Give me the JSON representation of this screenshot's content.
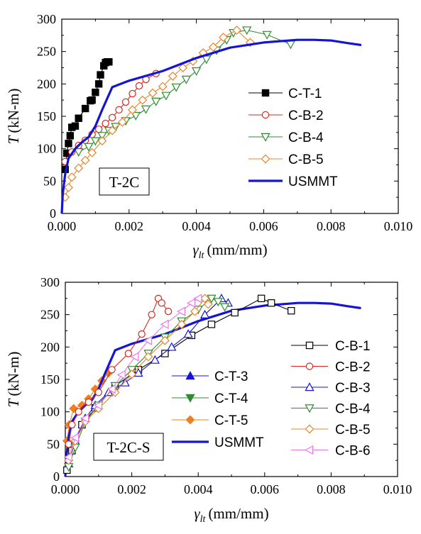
{
  "chart_data": [
    {
      "type": "line",
      "xlim": [
        0,
        0.01
      ],
      "ylim": [
        0,
        300
      ],
      "xticks": [
        "0.000",
        "0.002",
        "0.004",
        "0.006",
        "0.008",
        "0.010"
      ],
      "yticks": [
        "0",
        "50",
        "100",
        "150",
        "200",
        "250",
        "300"
      ],
      "xlabel": "γ",
      "xlabel_sub": "lt",
      "xlabel_unit": "(mm/mm)",
      "ylabel": "T",
      "ylabel_unit": "(kN-m)",
      "annotation": "T-2C",
      "legend_position": "right",
      "series": [
        {
          "name": "C-T-1",
          "marker": "square-filled",
          "color": "#000000",
          "x": [
            0.0001,
            0.00015,
            0.0002,
            0.00025,
            0.0003,
            0.0004,
            0.0005,
            0.0007,
            0.00085,
            0.0009,
            0.001,
            0.0011,
            0.00115,
            0.00125,
            0.0013,
            0.00135,
            0.0014
          ],
          "y": [
            68,
            93,
            108,
            120,
            133,
            135,
            147,
            162,
            174,
            175,
            187,
            200,
            214,
            228,
            233,
            234,
            234
          ]
        },
        {
          "name": "C-B-2",
          "marker": "circle-open",
          "color": "#d9281e",
          "x": [
            0.0001,
            0.0003,
            0.0005,
            0.0007,
            0.0009,
            0.0011,
            0.0013,
            0.0015,
            0.0017,
            0.0019,
            0.0021,
            0.0023,
            0.0025,
            0.0028
          ],
          "y": [
            80,
            95,
            105,
            113,
            122,
            130,
            139,
            148,
            160,
            172,
            185,
            197,
            207,
            216
          ]
        },
        {
          "name": "C-B-4",
          "marker": "triangle-down-open",
          "color": "#2e8b2e",
          "x": [
            0.0005,
            0.0008,
            0.001,
            0.0012,
            0.0014,
            0.0016,
            0.0019,
            0.0022,
            0.0025,
            0.0028,
            0.0031,
            0.0034,
            0.0037,
            0.004,
            0.0043,
            0.0046,
            0.0049,
            0.0051,
            0.0055,
            0.0061,
            0.0068
          ],
          "y": [
            95,
            103,
            112,
            120,
            128,
            134,
            143,
            151,
            161,
            173,
            182,
            195,
            207,
            220,
            238,
            252,
            268,
            279,
            283,
            276,
            261
          ]
        },
        {
          "name": "C-B-5",
          "marker": "diamond-open",
          "color": "#e8852a",
          "x": [
            0.0001,
            0.0002,
            0.0003,
            0.0005,
            0.0007,
            0.0009,
            0.0012,
            0.0015,
            0.0018,
            0.0021,
            0.0024,
            0.0027,
            0.003,
            0.0033,
            0.0036,
            0.0039,
            0.0042,
            0.0045,
            0.0048,
            0.0052,
            0.0056
          ],
          "y": [
            25,
            40,
            56,
            70,
            82,
            94,
            112,
            128,
            141,
            160,
            175,
            186,
            196,
            212,
            225,
            235,
            248,
            257,
            272,
            283,
            264
          ]
        },
        {
          "name": "USMMT",
          "marker": "none",
          "color": "#1414d2",
          "x": [
            0,
            3e-05,
            0.0001,
            0.0002,
            0.0004,
            0.0006,
            0.0008,
            0.001,
            0.0012,
            0.0015,
            0.002,
            0.003,
            0.004,
            0.005,
            0.006,
            0.007,
            0.0075,
            0.008,
            0.0085,
            0.0089
          ],
          "y": [
            0,
            30,
            60,
            85,
            100,
            110,
            118,
            135,
            160,
            195,
            205,
            220,
            240,
            256,
            264,
            268,
            268,
            267,
            263,
            260
          ]
        }
      ]
    },
    {
      "type": "line",
      "xlim": [
        0,
        0.01
      ],
      "ylim": [
        0,
        300
      ],
      "xticks": [
        "0.000",
        "0.002",
        "0.004",
        "0.006",
        "0.008",
        "0.010"
      ],
      "yticks": [
        "0",
        "50",
        "100",
        "150",
        "200",
        "250",
        "300"
      ],
      "xlabel": "γ",
      "xlabel_sub": "lt",
      "xlabel_unit": "(mm/mm)",
      "ylabel": "T",
      "ylabel_unit": "(kN-m)",
      "annotation": "T-2C-S",
      "legend_position": "center",
      "series": [
        {
          "name": "C-T-3",
          "marker": "triangle-up-filled",
          "color": "#1414d2",
          "x": [],
          "y": []
        },
        {
          "name": "C-T-4",
          "marker": "triangle-down-filled",
          "color": "#2e8b2e",
          "x": [],
          "y": []
        },
        {
          "name": "C-T-5",
          "marker": "diamond-filled",
          "color": "#f07f1e",
          "x": [
            5e-05,
            0.00012,
            0.00025,
            0.0005,
            0.0007,
            0.0009,
            0.0011,
            0.0013
          ],
          "y": [
            55,
            80,
            105,
            110,
            120,
            135,
            148,
            160
          ]
        },
        {
          "name": "USMMT",
          "marker": "none",
          "color": "#1414d2",
          "x": [
            0,
            3e-05,
            0.0001,
            0.0002,
            0.0004,
            0.0006,
            0.0008,
            0.001,
            0.0012,
            0.0015,
            0.002,
            0.003,
            0.004,
            0.005,
            0.006,
            0.007,
            0.0075,
            0.008,
            0.0085,
            0.0089
          ],
          "y": [
            0,
            30,
            60,
            85,
            100,
            110,
            118,
            135,
            160,
            195,
            205,
            220,
            240,
            256,
            264,
            268,
            268,
            267,
            263,
            260
          ]
        },
        {
          "name": "C-B-1",
          "marker": "square-open",
          "color": "#000000",
          "x": [
            5e-05,
            0.0002,
            0.0005,
            0.0009,
            0.0015,
            0.0022,
            0.003,
            0.0038,
            0.0044,
            0.0051,
            0.0059,
            0.0062,
            0.0068
          ],
          "y": [
            10,
            40,
            80,
            106,
            140,
            165,
            190,
            218,
            235,
            253,
            275,
            268,
            256
          ]
        },
        {
          "name": "C-B-2",
          "marker": "circle-open",
          "color": "#d9281e",
          "x": [
            0.0001,
            0.0002,
            0.0004,
            0.0007,
            0.001,
            0.0014,
            0.0019,
            0.0023,
            0.0026,
            0.0028,
            0.0029,
            0.0031
          ],
          "y": [
            50,
            80,
            100,
            115,
            130,
            165,
            190,
            220,
            250,
            275,
            268,
            255
          ]
        },
        {
          "name": "C-B-3",
          "marker": "triangle-up-open",
          "color": "#1414d2",
          "x": [
            0.0001,
            0.0003,
            0.0006,
            0.0009,
            0.0013,
            0.0018,
            0.0022,
            0.0027,
            0.0032,
            0.0037,
            0.0042,
            0.0047,
            0.0049
          ],
          "y": [
            20,
            55,
            90,
            110,
            130,
            145,
            160,
            180,
            200,
            220,
            250,
            275,
            268
          ]
        },
        {
          "name": "C-B-4",
          "marker": "triangle-down-open",
          "color": "#2e8b2e",
          "x": [
            0.0001,
            0.0003,
            0.0006,
            0.001,
            0.0015,
            0.002,
            0.0025,
            0.003,
            0.0035,
            0.004,
            0.0044,
            0.0046,
            0.0048
          ],
          "y": [
            15,
            45,
            85,
            110,
            140,
            165,
            190,
            215,
            240,
            258,
            275,
            270,
            262
          ]
        },
        {
          "name": "C-B-5",
          "marker": "diamond-open",
          "color": "#e8852a",
          "x": [
            0.0001,
            0.0003,
            0.0006,
            0.001,
            0.0015,
            0.002,
            0.0025,
            0.003,
            0.0035,
            0.0039,
            0.0042,
            0.0043
          ],
          "y": [
            25,
            55,
            85,
            105,
            130,
            158,
            185,
            210,
            235,
            255,
            275,
            266
          ]
        },
        {
          "name": "C-B-6",
          "marker": "triangle-left-open",
          "color": "#e878e8",
          "x": [
            0.0001,
            0.0003,
            0.0006,
            0.001,
            0.0014,
            0.0017,
            0.0021,
            0.0025,
            0.003,
            0.0035,
            0.0038,
            0.004
          ],
          "y": [
            30,
            60,
            90,
            110,
            135,
            157,
            185,
            210,
            235,
            255,
            268,
            275
          ]
        }
      ]
    }
  ]
}
